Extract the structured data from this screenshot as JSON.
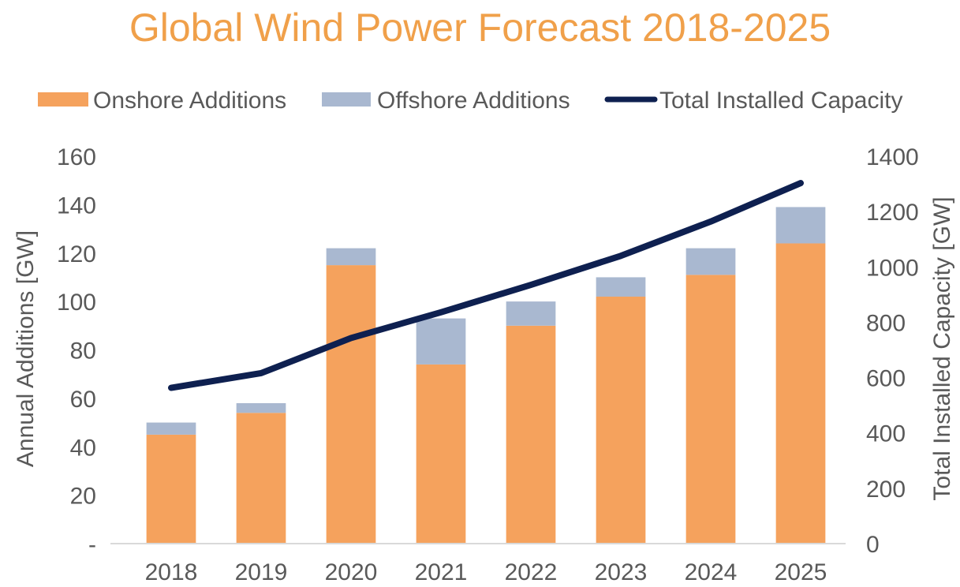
{
  "chart_data": {
    "type": "bar",
    "title": "Global Wind Power Forecast 2018-2025",
    "categories": [
      "2018",
      "2019",
      "2020",
      "2021",
      "2022",
      "2023",
      "2024",
      "2025"
    ],
    "series": [
      {
        "name": "Onshore Additions",
        "type": "stacked-bar",
        "axis": "left",
        "color": "#F5A25D",
        "values": [
          45,
          54,
          115,
          74,
          90,
          102,
          111,
          124
        ]
      },
      {
        "name": "Offshore Additions",
        "type": "stacked-bar",
        "axis": "left",
        "color": "#A9B8D0",
        "values": [
          5,
          4,
          7,
          19,
          10,
          8,
          11,
          15
        ]
      },
      {
        "name": "Total Installed Capacity",
        "type": "line",
        "axis": "right",
        "color": "#0E2050",
        "values": [
          563,
          616,
          743,
          836,
          935,
          1040,
          1164,
          1303
        ]
      }
    ],
    "ylabel": "Annual Additions [GW]",
    "ylabel_right": "Total Installed Capacity [GW]",
    "ylim": [
      0,
      160
    ],
    "ylim_right": [
      0,
      1400
    ],
    "y_ticks": [
      {
        "value": 0,
        "label": "-"
      },
      {
        "value": 20,
        "label": "20"
      },
      {
        "value": 40,
        "label": "40"
      },
      {
        "value": 60,
        "label": "60"
      },
      {
        "value": 80,
        "label": "80"
      },
      {
        "value": 100,
        "label": "100"
      },
      {
        "value": 120,
        "label": "120"
      },
      {
        "value": 140,
        "label": "140"
      },
      {
        "value": 160,
        "label": "160"
      }
    ],
    "y_ticks_right": [
      {
        "value": 0,
        "label": "0"
      },
      {
        "value": 200,
        "label": "200"
      },
      {
        "value": 400,
        "label": "400"
      },
      {
        "value": 600,
        "label": "600"
      },
      {
        "value": 800,
        "label": "800"
      },
      {
        "value": 1000,
        "label": "1000"
      },
      {
        "value": 1200,
        "label": "1200"
      },
      {
        "value": 1400,
        "label": "1400"
      }
    ],
    "grid": false,
    "legend_position": "top"
  }
}
